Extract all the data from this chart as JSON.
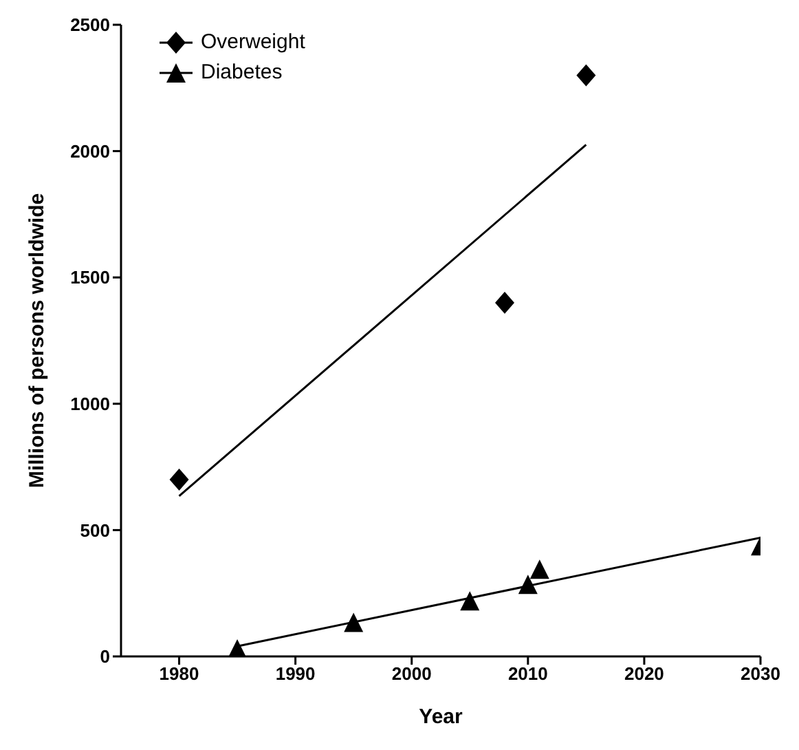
{
  "chart_data": {
    "type": "scatter",
    "xlabel": "Year",
    "ylabel": "Millions of persons worldwide",
    "xlim": [
      1975,
      2030
    ],
    "xticks": [
      1980,
      1990,
      2000,
      2010,
      2020,
      2030
    ],
    "ylim": [
      0,
      2500
    ],
    "yticks": [
      0,
      500,
      1000,
      1500,
      2000,
      2500
    ],
    "grid": false,
    "legend": "top left",
    "series": [
      {
        "name": "Overweight",
        "type": "scatter",
        "marker": "diamond",
        "color": "#000000",
        "x": [
          1980,
          2008,
          2015
        ],
        "values": [
          700,
          1400,
          2300
        ]
      },
      {
        "name": "Diabetes",
        "type": "scatter",
        "marker": "triangle",
        "color": "#000000",
        "x": [
          1985,
          1995,
          2005,
          2010,
          2011,
          2030
        ],
        "values": [
          30,
          135,
          220,
          285,
          345,
          438
        ]
      },
      {
        "type": "line",
        "marker": "none",
        "color": "#000000",
        "x": [
          1980,
          2015
        ],
        "values": [
          635,
          2025
        ]
      },
      {
        "type": "line",
        "marker": "none",
        "color": "#000000",
        "x": [
          1985,
          2030
        ],
        "values": [
          40,
          470
        ]
      }
    ]
  }
}
